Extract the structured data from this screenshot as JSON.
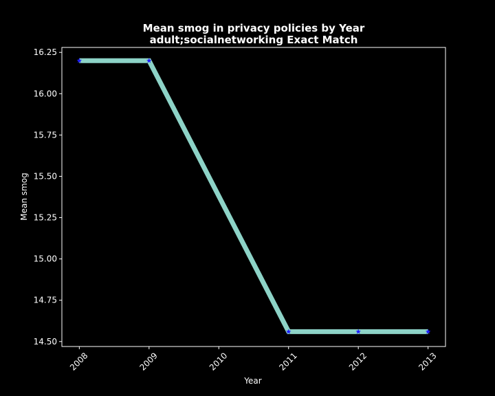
{
  "chart_data": {
    "type": "line",
    "title": "Mean smog in privacy policies by Year",
    "subtitle": "adult;socialnetworking Exact Match",
    "xlabel": "Year",
    "ylabel": "Mean smog",
    "x": [
      2008,
      2009,
      2010,
      2011,
      2012,
      2013
    ],
    "xticks": [
      "2008",
      "2009",
      "2010",
      "2011",
      "2012",
      "2013"
    ],
    "yticks": [
      "14.50",
      "14.75",
      "15.00",
      "15.25",
      "15.50",
      "15.75",
      "16.00",
      "16.25"
    ],
    "ylim": [
      14.47,
      16.28
    ],
    "xlim": [
      2007.75,
      2013.25
    ],
    "series": [
      {
        "x": [
          2008,
          2009,
          2011,
          2012,
          2013
        ],
        "values": [
          16.2,
          16.2,
          14.56,
          14.56,
          14.56
        ],
        "line_color": "#8dd3c7",
        "marker_color": "#1f1fff",
        "marker": "star"
      }
    ],
    "grid": false,
    "background": "#000000",
    "foreground": "#ffffff"
  }
}
